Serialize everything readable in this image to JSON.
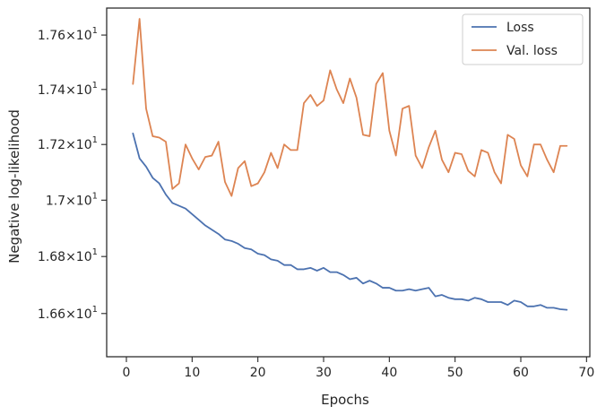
{
  "chart_data": {
    "type": "line",
    "xlabel": "Epochs",
    "ylabel": "Negative log-likelihood",
    "xlim": [
      -3,
      70.5
    ],
    "ylim": [
      16.45,
      17.7
    ],
    "y_scale": "log",
    "grid": false,
    "legend_position": "top-right",
    "x_ticks": [
      0,
      10,
      20,
      30,
      40,
      50,
      60,
      70
    ],
    "x_tick_labels": [
      "0",
      "10",
      "20",
      "30",
      "40",
      "50",
      "60",
      "70"
    ],
    "y_ticks": [
      16.6,
      16.8,
      17.0,
      17.2,
      17.4,
      17.6
    ],
    "y_tick_labels": [
      {
        "mantissa": "1.66",
        "sep": "×",
        "base": "10",
        "exp": "1"
      },
      {
        "mantissa": "1.68",
        "sep": "×",
        "base": "10",
        "exp": "1"
      },
      {
        "mantissa": "1.7",
        "sep": "×",
        "base": "10",
        "exp": "1"
      },
      {
        "mantissa": "1.72",
        "sep": "×",
        "base": "10",
        "exp": "1"
      },
      {
        "mantissa": "1.74",
        "sep": "×",
        "base": "10",
        "exp": "1"
      },
      {
        "mantissa": "1.76",
        "sep": "×",
        "base": "10",
        "exp": "1"
      }
    ],
    "x": [
      1,
      2,
      3,
      4,
      5,
      6,
      7,
      8,
      9,
      10,
      11,
      12,
      13,
      14,
      15,
      16,
      17,
      18,
      19,
      20,
      21,
      22,
      23,
      24,
      25,
      26,
      27,
      28,
      29,
      30,
      31,
      32,
      33,
      34,
      35,
      36,
      37,
      38,
      39,
      40,
      41,
      42,
      43,
      44,
      45,
      46,
      47,
      48,
      49,
      50,
      51,
      52,
      53,
      54,
      55,
      56,
      57,
      58,
      59,
      60,
      61,
      62,
      63,
      64,
      65,
      66,
      67
    ],
    "series": [
      {
        "name": "Loss",
        "color": "#4c72b0",
        "values": [
          17.24,
          17.15,
          17.12,
          17.08,
          17.06,
          17.02,
          16.99,
          16.98,
          16.97,
          16.95,
          16.93,
          16.91,
          16.895,
          16.88,
          16.86,
          16.855,
          16.845,
          16.83,
          16.825,
          16.81,
          16.805,
          16.79,
          16.785,
          16.77,
          16.77,
          16.755,
          16.755,
          16.76,
          16.75,
          16.76,
          16.745,
          16.745,
          16.735,
          16.72,
          16.725,
          16.705,
          16.715,
          16.705,
          16.69,
          16.69,
          16.68,
          16.68,
          16.685,
          16.68,
          16.685,
          16.69,
          16.66,
          16.665,
          16.655,
          16.65,
          16.65,
          16.645,
          16.655,
          16.65,
          16.64,
          16.64,
          16.64,
          16.63,
          16.645,
          16.64,
          16.625,
          16.625,
          16.63,
          16.62,
          16.62,
          16.615,
          16.613
        ]
      },
      {
        "name": "Val. loss",
        "color": "#dd8452",
        "values": [
          17.42,
          17.66,
          17.33,
          17.23,
          17.225,
          17.21,
          17.04,
          17.06,
          17.2,
          17.15,
          17.11,
          17.155,
          17.16,
          17.21,
          17.065,
          17.015,
          17.115,
          17.14,
          17.05,
          17.06,
          17.1,
          17.17,
          17.115,
          17.2,
          17.18,
          17.18,
          17.35,
          17.38,
          17.34,
          17.36,
          17.47,
          17.4,
          17.35,
          17.44,
          17.37,
          17.235,
          17.23,
          17.42,
          17.46,
          17.25,
          17.16,
          17.33,
          17.34,
          17.16,
          17.115,
          17.19,
          17.25,
          17.145,
          17.1,
          17.17,
          17.165,
          17.105,
          17.085,
          17.18,
          17.17,
          17.1,
          17.06,
          17.235,
          17.22,
          17.125,
          17.085,
          17.2,
          17.2,
          17.145,
          17.1,
          17.195,
          17.195
        ]
      }
    ]
  }
}
